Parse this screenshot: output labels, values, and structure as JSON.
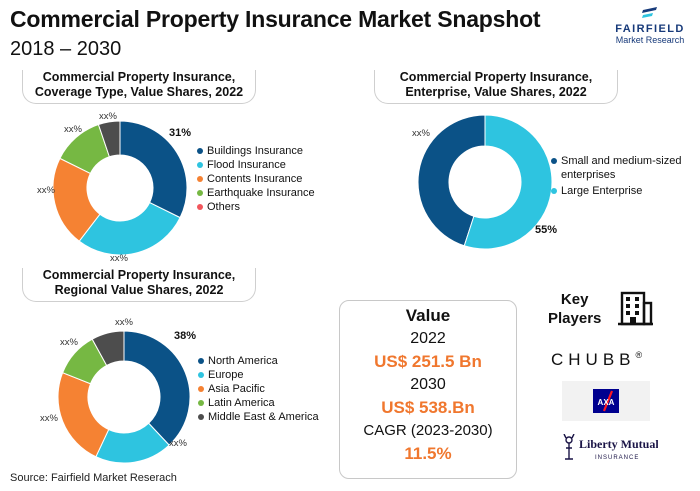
{
  "header": {
    "title": "Commercial Property Insurance Market Snapshot",
    "subtitle": "2018 – 2030",
    "logo_name": "FAIRFIELD",
    "logo_sub": "Market Research"
  },
  "chart_data": [
    {
      "type": "pie",
      "title": "Commercial Property Insurance, Coverage Type, Value Shares, 2022",
      "title_lines": [
        "Commercial Property Insurance,",
        "Coverage Type, Value Shares, 2022"
      ],
      "donut": true,
      "categories": [
        "Buildings Insurance",
        "Flood Insurance",
        "Contents Insurance",
        "Earthquake Insurance",
        "Others"
      ],
      "values": [
        31,
        27,
        21,
        12,
        5
      ],
      "labels": [
        "31%",
        "xx%",
        "xx%",
        "xx%",
        "xx%"
      ],
      "colors": [
        "#0b5287",
        "#2ec4e0",
        "#f58233",
        "#76b843",
        "#4d4d4d"
      ],
      "legend": "right"
    },
    {
      "type": "pie",
      "title": "Commercial Property Insurance, Enterprise, Value Shares, 2022",
      "title_lines": [
        "Commercial Property Insurance,",
        "Enterprise, Value Shares, 2022"
      ],
      "donut": true,
      "categories": [
        "Small and medium-sized enterprises",
        "Large Enterprise"
      ],
      "legend_lines": [
        [
          "Small and medium-sized",
          "enterprises"
        ],
        [
          "Large Enterprise"
        ]
      ],
      "values": [
        45,
        55
      ],
      "labels": [
        "xx%",
        "55%"
      ],
      "colors": [
        "#0b5287",
        "#2ec4e0"
      ],
      "legend": "right"
    },
    {
      "type": "pie",
      "title": "Commercial Property Insurance, Regional Value Shares, 2022",
      "title_lines": [
        "Commercial Property Insurance,",
        "Regional Value Shares, 2022"
      ],
      "donut": true,
      "categories": [
        "North America",
        "Europe",
        "Asia Pacific",
        "Latin America",
        "Middle East & America"
      ],
      "values": [
        38,
        19,
        24,
        11,
        8
      ],
      "labels": [
        "38%",
        "xx%",
        "xx%",
        "xx%",
        "xx%"
      ],
      "colors": [
        "#0b5287",
        "#2ec4e0",
        "#f58233",
        "#76b843",
        "#4d4d4d"
      ],
      "legend": "right"
    }
  ],
  "value_box": {
    "heading": "Value",
    "year1": "2022",
    "value1": "US$ 251.5 Bn",
    "year2": "2030",
    "value2": "US$ 538.Bn",
    "cagr_label": "CAGR (2023-2030)",
    "cagr_value": "11.5%"
  },
  "key_players": {
    "heading_lines": [
      "Key",
      "Players"
    ],
    "icon": "building-icon",
    "logos": [
      "CHUBB",
      "AXA",
      "Liberty Mutual. INSURANCE"
    ],
    "chubb_text": "CHUBB",
    "axa_text": "AXA",
    "liberty_text": "Liberty Mutual.",
    "liberty_sub": "INSURANCE"
  },
  "footer": {
    "source": "Source: Fairfield Market Reserach"
  }
}
